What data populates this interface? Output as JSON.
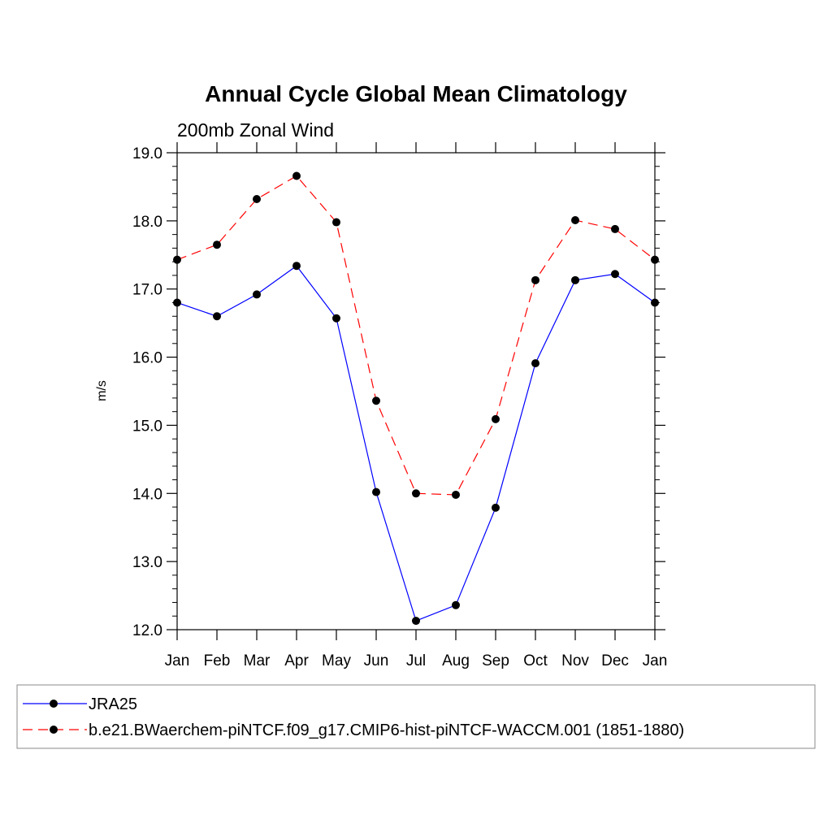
{
  "chart_data": {
    "type": "line",
    "title": "Annual Cycle Global Mean Climatology",
    "subtitle": "200mb Zonal Wind",
    "xlabel": "",
    "ylabel": "m/s",
    "categories": [
      "Jan",
      "Feb",
      "Mar",
      "Apr",
      "May",
      "Jun",
      "Jul",
      "Aug",
      "Sep",
      "Oct",
      "Nov",
      "Dec",
      "Jan"
    ],
    "ylim": [
      12.0,
      19.0
    ],
    "y_ticks": [
      "12.0",
      "13.0",
      "14.0",
      "15.0",
      "16.0",
      "17.0",
      "18.0",
      "19.0"
    ],
    "grid": false,
    "legend_position": "bottom",
    "series": [
      {
        "name": "JRA25",
        "color": "#0000ff",
        "line_style": "solid",
        "values": [
          16.8,
          16.6,
          16.92,
          17.34,
          16.57,
          14.02,
          12.13,
          12.36,
          13.79,
          15.91,
          17.13,
          17.22,
          16.8
        ]
      },
      {
        "name": "b.e21.BWaerchem-piNTCF.f09_g17.CMIP6-hist-piNTCF-WACCM.001 (1851-1880)",
        "color": "#ff0000",
        "line_style": "dashed",
        "values": [
          17.43,
          17.65,
          18.32,
          18.66,
          17.98,
          15.36,
          14.0,
          13.98,
          15.09,
          17.13,
          18.01,
          17.88,
          17.43
        ]
      }
    ]
  }
}
